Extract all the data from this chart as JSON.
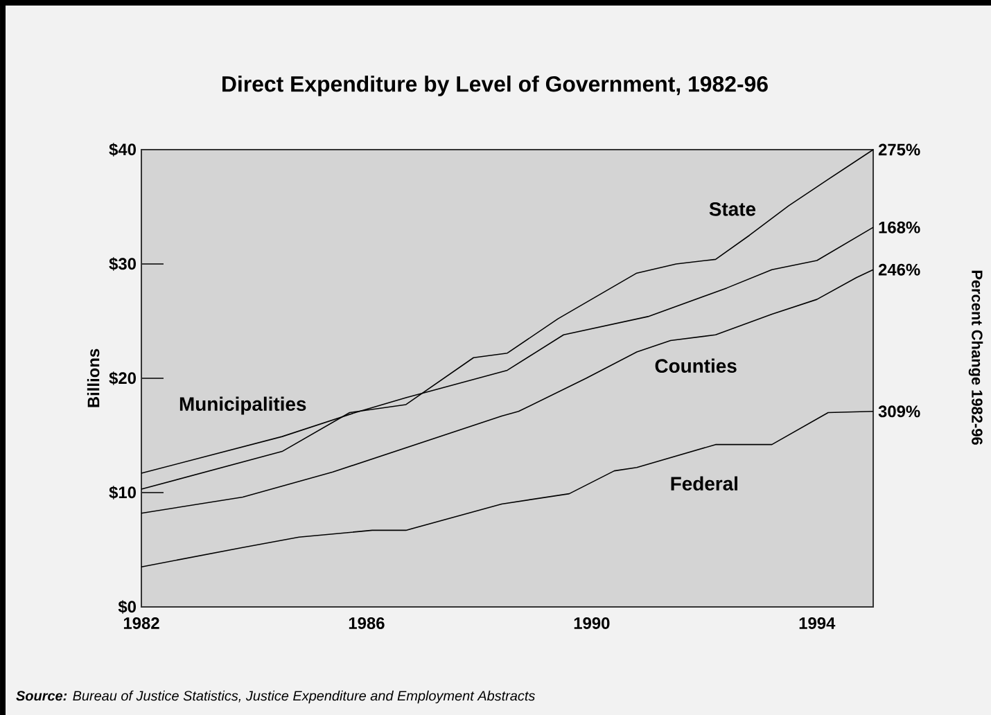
{
  "chart_data": {
    "type": "line",
    "title": "Direct Expenditure by Level of Government, 1982-96",
    "ylabel": "Billions",
    "xlim": [
      1982,
      1995
    ],
    "xticks": [
      1982,
      1986,
      1990,
      1994
    ],
    "ylim": [
      0,
      40
    ],
    "yticks": [
      {
        "value": 0,
        "label": "$0"
      },
      {
        "value": 10,
        "label": "$10"
      },
      {
        "value": 20,
        "label": "$20"
      },
      {
        "value": 30,
        "label": "$30"
      },
      {
        "value": 40,
        "label": "$40"
      }
    ],
    "grid": false,
    "marker": "none",
    "line_style": "solid",
    "series": [
      {
        "name": "Municipalities",
        "color": "#000000",
        "x": [
          1982,
          1983.1,
          1984.5,
          1985.8,
          1986.7,
          1988.5,
          1989.5,
          1991.0,
          1992.4,
          1993.2,
          1994.0,
          1995
        ],
        "values": [
          11.7,
          13.1,
          14.9,
          17.0,
          18.3,
          20.7,
          23.8,
          25.4,
          27.9,
          29.5,
          30.3,
          33.2
        ]
      },
      {
        "name": "State",
        "color": "#000000",
        "x": [
          1982,
          1984.5,
          1985.7,
          1986.7,
          1987.9,
          1988.5,
          1989.4,
          1990.8,
          1991.5,
          1992.2,
          1992.8,
          1993.5,
          1994.2,
          1995
        ],
        "values": [
          10.3,
          13.6,
          17.0,
          17.7,
          21.8,
          22.2,
          25.2,
          29.2,
          30.0,
          30.4,
          32.5,
          35.1,
          37.4,
          40.0
        ]
      },
      {
        "name": "Counties",
        "color": "#000000",
        "x": [
          1982,
          1983.8,
          1985.4,
          1988.4,
          1988.7,
          1989.9,
          1990.8,
          1991.4,
          1992.2,
          1993.2,
          1994.0,
          1994.7,
          1995
        ],
        "values": [
          8.2,
          9.6,
          11.8,
          16.7,
          17.1,
          20.0,
          22.3,
          23.3,
          23.8,
          25.6,
          26.9,
          28.8,
          29.5
        ]
      },
      {
        "name": "Federal",
        "color": "#000000",
        "x": [
          1982,
          1983.8,
          1984.8,
          1986.1,
          1986.7,
          1988.4,
          1989.6,
          1990.4,
          1990.8,
          1992.2,
          1993.2,
          1994.2,
          1995
        ],
        "values": [
          3.5,
          5.2,
          6.1,
          6.7,
          6.7,
          9.0,
          9.9,
          11.9,
          12.2,
          14.2,
          14.2,
          17.0,
          17.1
        ]
      }
    ],
    "annotations": [
      "168%",
      "275%",
      "246%",
      "309%",
      "Percent Change 1982-96",
      "**Source:** *Bureau of Justice Statistics, Justice Expenditure and Employment Abstracts*"
    ]
  }
}
